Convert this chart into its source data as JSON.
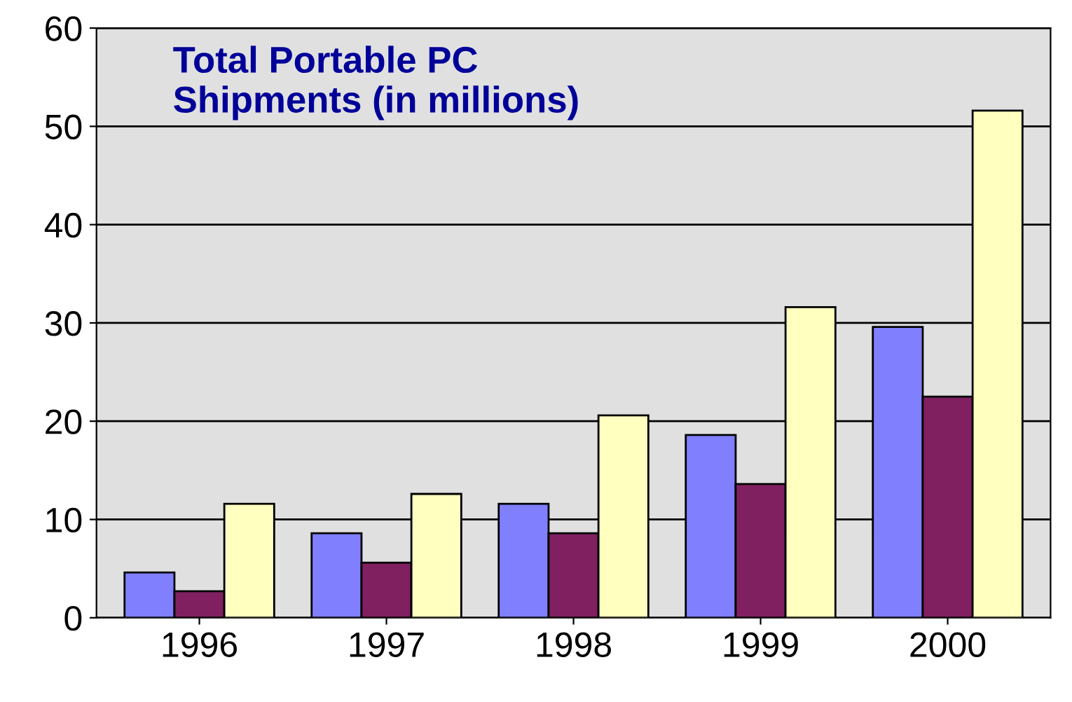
{
  "chart_data": {
    "type": "bar",
    "title": "Total Portable PC\nShipments (in millions)",
    "categories": [
      "1996",
      "1997",
      "1998",
      "1999",
      "2000"
    ],
    "series": [
      {
        "color": "#8080ff",
        "values": [
          4.6,
          8.6,
          11.6,
          18.6,
          29.6
        ]
      },
      {
        "color": "#802060",
        "values": [
          2.7,
          5.6,
          8.6,
          13.6,
          22.5
        ]
      },
      {
        "color": "#ffffc0",
        "values": [
          11.6,
          12.6,
          20.6,
          31.6,
          51.6
        ]
      }
    ],
    "ylim": [
      0,
      60
    ],
    "yticks": [
      0,
      10,
      20,
      30,
      40,
      50,
      60
    ],
    "grid": "y",
    "legend": false
  }
}
